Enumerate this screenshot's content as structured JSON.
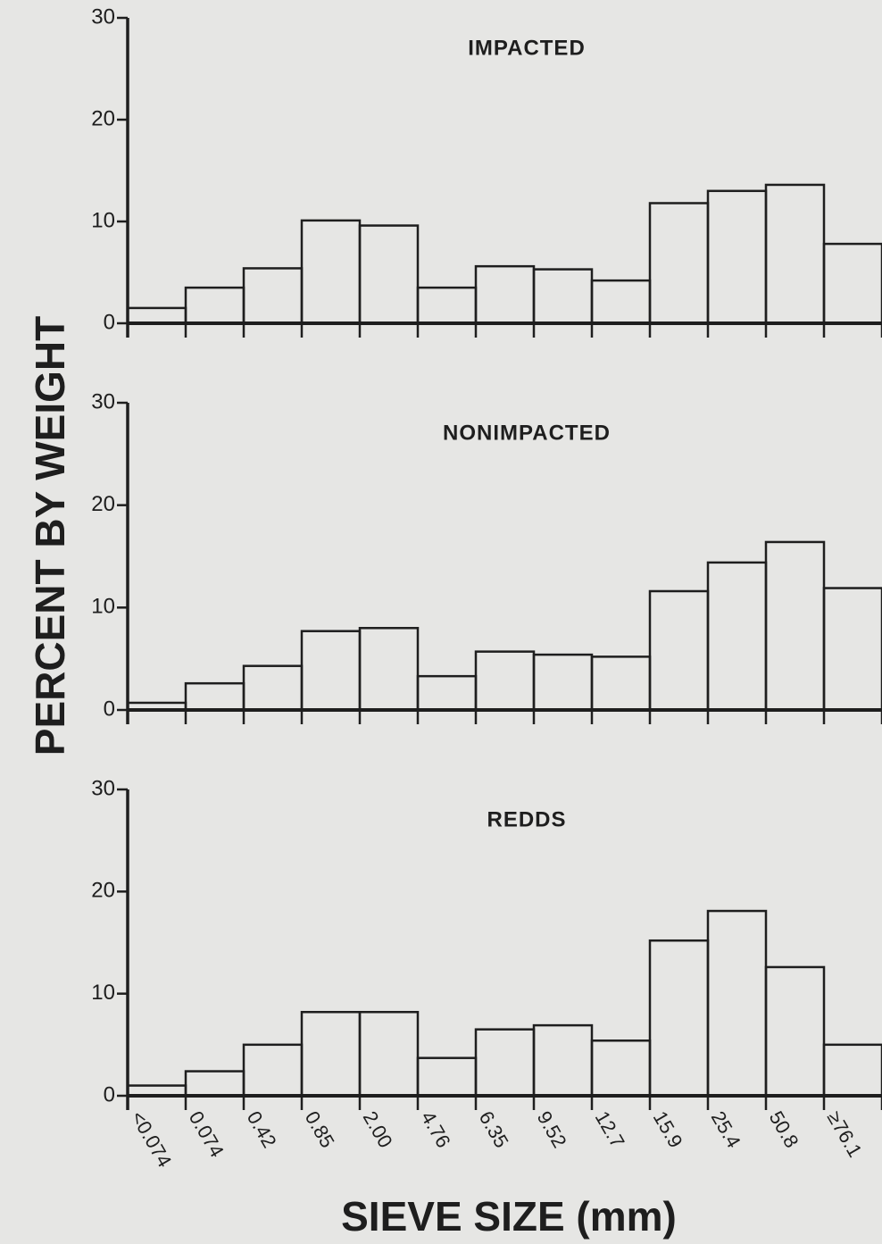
{
  "y_label": "PERCENT BY WEIGHT",
  "x_label": "SIEVE SIZE (mm)",
  "chart_data": [
    {
      "type": "bar",
      "title": "IMPACTED",
      "ylim": [
        0,
        30
      ],
      "yticks": [
        0,
        10,
        20,
        30
      ],
      "values": [
        1.5,
        3.5,
        5.4,
        10.1,
        9.6,
        3.5,
        5.6,
        5.3,
        4.2,
        11.8,
        13,
        13.6,
        7.8
      ]
    },
    {
      "type": "bar",
      "title": "NONIMPACTED",
      "ylim": [
        0,
        30
      ],
      "yticks": [
        0,
        10,
        20,
        30
      ],
      "values": [
        0.7,
        2.6,
        4.3,
        7.7,
        8.0,
        3.3,
        5.7,
        5.4,
        5.2,
        11.6,
        14.4,
        16.4,
        11.9
      ]
    },
    {
      "type": "bar",
      "title": "REDDS",
      "ylim": [
        0,
        30
      ],
      "yticks": [
        0,
        10,
        20,
        30
      ],
      "categories": [
        "<0.074",
        "0.074",
        "0.42",
        "0.85",
        "2.00",
        "4.76",
        "6.35",
        "9.52",
        "12.7",
        "15.9",
        "25.4",
        "50.8",
        "≥76.1"
      ],
      "values": [
        1.0,
        2.4,
        5.0,
        8.2,
        8.2,
        3.7,
        6.5,
        6.9,
        5.4,
        15.2,
        18.1,
        12.6,
        5.0
      ]
    }
  ]
}
